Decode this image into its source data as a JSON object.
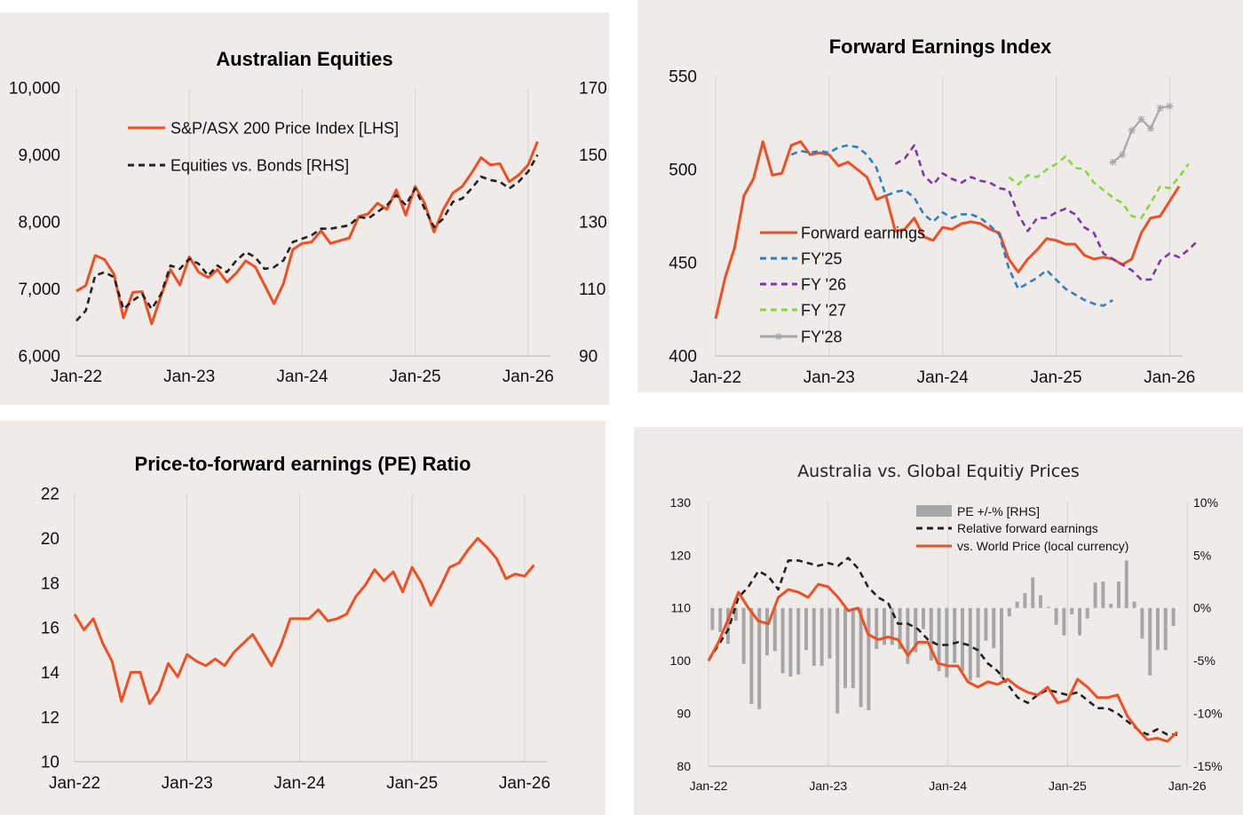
{
  "chart_data": [
    {
      "id": "p1",
      "type": "line",
      "title": "Australian Equities",
      "x_ticks": [
        "Jan-22",
        "Jan-23",
        "Jan-24",
        "Jan-25",
        "Jan-26"
      ],
      "ylim": [
        6000,
        10000
      ],
      "y_ticks": [
        "6,000",
        "7,000",
        "8,000",
        "9,000",
        "10,000"
      ],
      "ylim_right": [
        90,
        170
      ],
      "y_ticks_right": [
        "90",
        "110",
        "130",
        "150",
        "170"
      ],
      "grid": "vertical",
      "legend_position": "top-left",
      "series": [
        {
          "name": "S&P/ASX 200 Price Index [LHS]",
          "axis": "left",
          "color": "#f04e23",
          "style": "solid",
          "values": [
            6970,
            7050,
            7500,
            7440,
            7220,
            6570,
            6950,
            6960,
            6480,
            6900,
            7290,
            7060,
            7480,
            7250,
            7170,
            7290,
            7100,
            7240,
            7420,
            7330,
            7060,
            6780,
            7080,
            7590,
            7680,
            7700,
            7870,
            7680,
            7720,
            7760,
            8080,
            8120,
            8280,
            8190,
            8480,
            8100,
            8530,
            8280,
            7850,
            8190,
            8430,
            8530,
            8730,
            8960,
            8850,
            8870,
            8600,
            8700,
            8850,
            9200
          ]
        },
        {
          "name": "Equities vs. Bonds [RHS]",
          "axis": "right",
          "color": "#222222",
          "style": "dashed",
          "values": [
            100.5,
            103.5,
            114,
            115,
            113.5,
            104,
            106.5,
            108.5,
            104,
            108.5,
            117,
            116,
            119,
            117.5,
            114,
            117,
            115,
            118.5,
            121,
            119.5,
            116,
            116.5,
            118.5,
            124,
            125,
            126,
            128,
            128,
            128.5,
            129,
            131.5,
            131,
            133,
            135,
            138,
            135,
            140,
            134,
            128.5,
            131,
            136,
            137,
            140,
            143.5,
            142.5,
            142,
            140,
            142,
            145,
            150
          ]
        }
      ]
    },
    {
      "id": "p2",
      "type": "line",
      "title": "Forward Earnings Index",
      "x_ticks": [
        "Jan-22",
        "Jan-23",
        "Jan-24",
        "Jan-25",
        "Jan-26"
      ],
      "ylim": [
        400,
        550
      ],
      "y_ticks": [
        "400",
        "450",
        "500",
        "550"
      ],
      "grid": "vertical",
      "legend_position": "bottom-left",
      "series": [
        {
          "name": "Forward earnings",
          "color": "#f04e23",
          "style": "solid",
          "start_index": 0,
          "values": [
            420,
            442,
            458,
            486,
            495,
            515,
            497,
            498,
            513,
            515,
            508,
            509,
            508,
            502,
            504,
            500,
            496,
            484,
            486,
            467,
            468,
            474,
            464,
            462,
            469,
            468,
            471,
            472,
            471,
            468,
            466,
            452,
            445,
            452,
            457,
            463,
            462,
            460,
            460,
            454,
            452,
            453,
            452,
            449,
            452,
            466,
            474,
            475,
            483,
            491
          ]
        },
        {
          "name": "FY'25",
          "color": "#2f7fc1",
          "style": "dashed",
          "start_index": 8,
          "values": [
            508,
            510,
            509,
            510,
            509,
            512,
            513,
            512,
            508,
            501,
            486,
            488,
            489,
            485,
            476,
            472,
            477,
            474,
            476,
            476,
            474,
            470,
            465,
            447,
            436,
            439,
            442,
            446,
            441,
            436,
            433,
            430,
            428,
            427,
            430
          ]
        },
        {
          "name": "FY '26",
          "color": "#7b3aa3",
          "style": "dashed",
          "start_index": 19,
          "values": [
            503,
            506,
            513,
            497,
            492,
            498,
            495,
            493,
            496,
            494,
            493,
            490,
            489,
            476,
            467,
            474,
            474,
            477,
            479,
            476,
            469,
            466,
            455,
            452,
            449,
            446,
            441,
            441,
            451,
            455,
            453,
            457,
            462
          ]
        },
        {
          "name": "FY '27",
          "color": "#8cd63c",
          "style": "dashed",
          "start_index": 31,
          "values": [
            496,
            492,
            497,
            496,
            500,
            503,
            507,
            501,
            500,
            493,
            489,
            485,
            482,
            475,
            474,
            482,
            491,
            490,
            496,
            503
          ]
        },
        {
          "name": "FY'28",
          "color": "#a6a6a6",
          "style": "solid-star",
          "start_index": 42,
          "values": [
            504,
            508,
            521,
            527,
            522,
            533,
            534
          ]
        }
      ]
    },
    {
      "id": "p3",
      "type": "line",
      "title": "Price-to-forward earnings (PE) Ratio",
      "x_ticks": [
        "Jan-22",
        "Jan-23",
        "Jan-24",
        "Jan-25",
        "Jan-26"
      ],
      "ylim": [
        10,
        22
      ],
      "y_ticks": [
        "10",
        "12",
        "14",
        "16",
        "18",
        "20",
        "22"
      ],
      "grid": "vertical",
      "series": [
        {
          "name": "",
          "color": "#f04e23",
          "style": "solid",
          "values": [
            16.6,
            15.9,
            16.4,
            15.3,
            14.5,
            12.7,
            14.0,
            14.0,
            12.6,
            13.2,
            14.4,
            13.8,
            14.8,
            14.5,
            14.3,
            14.6,
            14.3,
            14.9,
            15.3,
            15.7,
            15.0,
            14.3,
            15.2,
            16.4,
            16.4,
            16.4,
            16.8,
            16.3,
            16.4,
            16.6,
            17.4,
            17.9,
            18.6,
            18.1,
            18.5,
            17.6,
            18.7,
            18.0,
            17.0,
            17.8,
            18.7,
            18.9,
            19.5,
            20.0,
            19.6,
            19.1,
            18.2,
            18.4,
            18.3,
            18.8
          ]
        }
      ]
    },
    {
      "id": "p4",
      "type": "bar+line",
      "title": "Australia vs. Global Equitiy Prices",
      "x_ticks": [
        "Jan-22",
        "Jan-23",
        "Jan-24",
        "Jan-25",
        "Jan-26"
      ],
      "ylim": [
        80,
        130
      ],
      "y_ticks": [
        "80",
        "90",
        "100",
        "110",
        "120",
        "130"
      ],
      "ylim_right": [
        -15,
        10
      ],
      "y_ticks_right": [
        "-15%",
        "-10%",
        "-5%",
        "0%",
        "5%",
        "10%"
      ],
      "grid": "vertical",
      "legend_position": "top-right",
      "series": [
        {
          "name": "PE +/-% [RHS]",
          "axis": "right",
          "kind": "bar",
          "color": "#a6a6a6",
          "values": [
            -2.1,
            -2.3,
            -3.4,
            -1.2,
            -5.3,
            -9.1,
            -9.6,
            -4.5,
            -4.1,
            -6.2,
            -6.5,
            -6.3,
            -4.0,
            -5.5,
            -5.5,
            -4.8,
            -10.0,
            -7.6,
            -7.6,
            -9.4,
            -9.7,
            -3.9,
            -3.5,
            -3.5,
            -3.9,
            -5.3,
            -4.2,
            -2.0,
            -5.0,
            -6.0,
            -6.6,
            -5.2,
            -6.0,
            -6.9,
            -6.6,
            -3.1,
            -3.8,
            -6.6,
            -0.8,
            0.6,
            1.4,
            2.9,
            1.2,
            0.1,
            -1.6,
            -2.6,
            -0.6,
            -2.6,
            -1.0,
            2.4,
            2.5,
            0.4,
            2.5,
            4.5,
            0.6,
            -2.9,
            -6.4,
            -4.0,
            -4.0,
            -1.7
          ]
        },
        {
          "name": "Relative forward earnings",
          "axis": "left",
          "kind": "line",
          "color": "#222222",
          "style": "dashed",
          "values": [
            100,
            103,
            106,
            112,
            114,
            117,
            116,
            113.5,
            119,
            119,
            118.5,
            118,
            118.5,
            118,
            119.5,
            117.5,
            114,
            112,
            111,
            107,
            107,
            106,
            104,
            103,
            103,
            103.5,
            103,
            102,
            99.5,
            98,
            95.5,
            93,
            92,
            93.5,
            94.5,
            94,
            93.5,
            94,
            92.5,
            91,
            91,
            90,
            88.5,
            87,
            86,
            87,
            86,
            86
          ]
        },
        {
          "name": "vs. World Price (local currency)",
          "axis": "left",
          "kind": "line",
          "color": "#f04e23",
          "style": "solid",
          "values": [
            100,
            103.5,
            108,
            113,
            110,
            107.5,
            107,
            112,
            113.5,
            113,
            112,
            114.5,
            114,
            112,
            109.5,
            110,
            105,
            104,
            104.5,
            104,
            101,
            103.5,
            103.5,
            99.5,
            99,
            99,
            96,
            95,
            96,
            95.5,
            96.5,
            95,
            94,
            93.5,
            95,
            92,
            92.5,
            96.5,
            95,
            93,
            93,
            93.5,
            89.5,
            87,
            85,
            85.3,
            84.7,
            86.5
          ]
        }
      ]
    }
  ]
}
